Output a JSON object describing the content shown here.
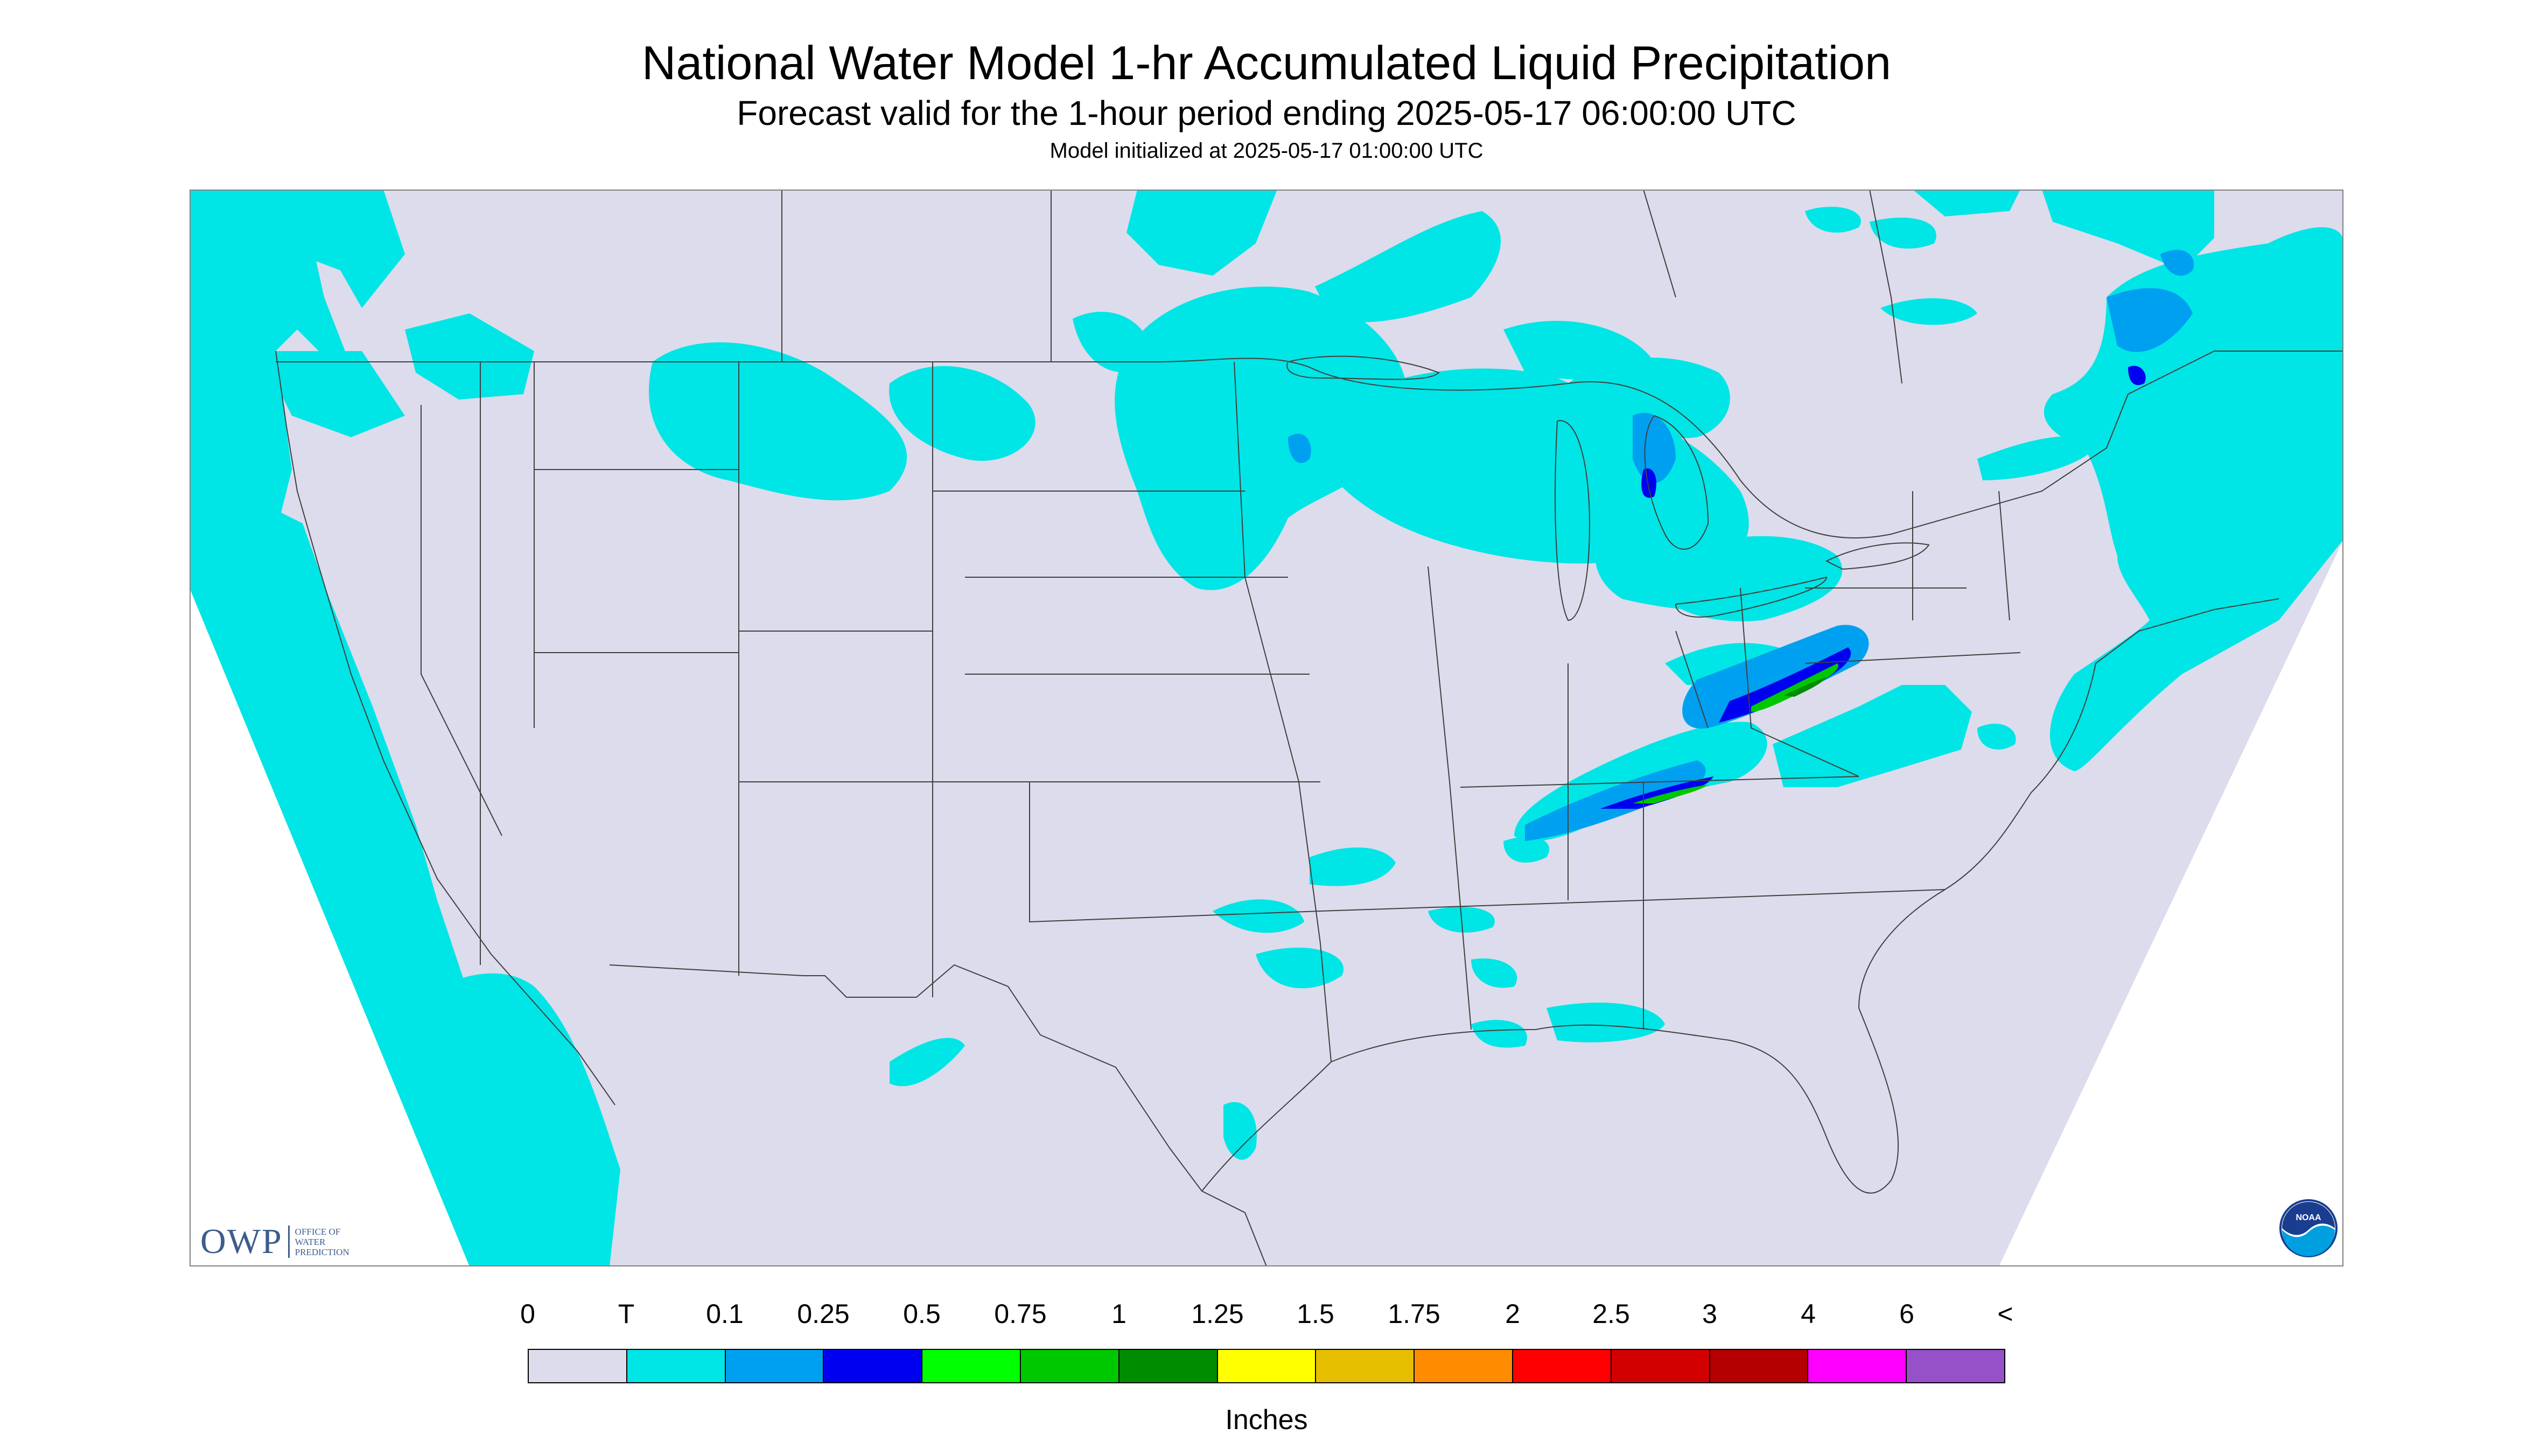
{
  "header": {
    "title": "National Water Model 1-hr Accumulated Liquid Precipitation",
    "subtitle": "Forecast valid for the 1-hour period ending 2025-05-17 06:00:00 UTC",
    "init": "Model initialized at 2025-05-17 01:00:00 UTC"
  },
  "map": {
    "region": "Continental United States",
    "background_color": "#dcdcec",
    "outside_color": "#ffffff",
    "border_color": "#404040"
  },
  "logos": {
    "owp": {
      "mark": "OWP",
      "line1": "OFFICE OF",
      "line2": "WATER",
      "line3": "PREDICTION"
    },
    "noaa": {
      "mark": "NOAA"
    }
  },
  "legend": {
    "units": "Inches",
    "labels": [
      "0",
      "T",
      "0.1",
      "0.25",
      "0.5",
      "0.75",
      "1",
      "1.25",
      "1.5",
      "1.75",
      "2",
      "2.5",
      "3",
      "4",
      "6",
      "<"
    ],
    "colors": [
      "#dcdcec",
      "#00e5e5",
      "#00a0f0",
      "#0000f0",
      "#00ff00",
      "#00c800",
      "#008c00",
      "#ffff00",
      "#e6be00",
      "#ff8c00",
      "#ff0000",
      "#d20000",
      "#b40000",
      "#ff00ff",
      "#9650c8"
    ]
  }
}
